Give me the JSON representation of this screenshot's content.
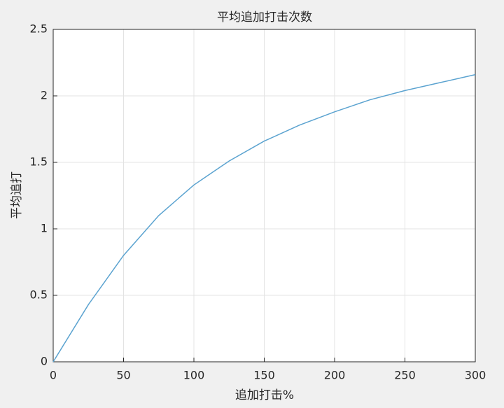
{
  "chart_data": {
    "type": "line",
    "title": "平均追加打击次数",
    "x_label": "追加打击%",
    "y_label": "平均追打",
    "x": [
      0,
      25,
      50,
      75,
      100,
      125,
      150,
      175,
      200,
      225,
      250,
      275,
      300
    ],
    "series": [
      {
        "color": "#5ba3d0",
        "values": [
          0,
          0.43,
          0.8,
          1.1,
          1.33,
          1.51,
          1.66,
          1.78,
          1.88,
          1.97,
          2.04,
          2.1,
          2.16
        ]
      }
    ],
    "xlim": [
      0,
      300
    ],
    "xticks": [
      0,
      50,
      100,
      150,
      200,
      250,
      300
    ],
    "ylim": [
      0,
      2.5
    ],
    "yticks": [
      0,
      0.5,
      1,
      1.5,
      2,
      2.5
    ],
    "grid": true
  }
}
